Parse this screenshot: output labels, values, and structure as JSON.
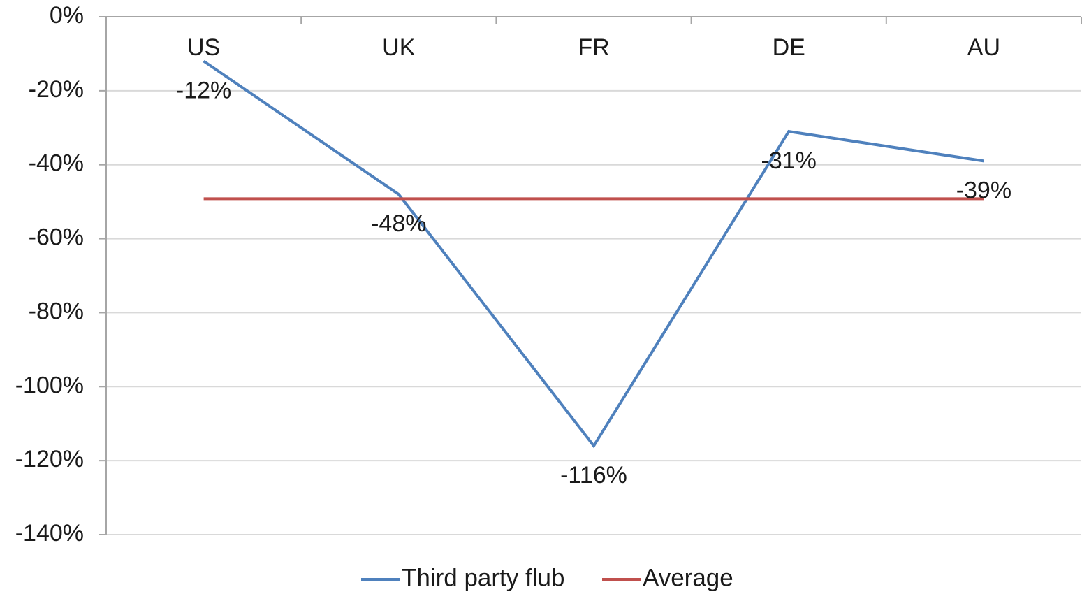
{
  "chart_data": {
    "type": "line",
    "title": "",
    "xlabel": "",
    "ylabel": "",
    "categories": [
      "US",
      "UK",
      "FR",
      "DE",
      "AU"
    ],
    "ylim": [
      -140,
      0
    ],
    "y_tick_values": [
      0,
      -20,
      -40,
      -60,
      -80,
      -100,
      -120,
      -140
    ],
    "y_tick_labels": [
      "0%",
      "-20%",
      "-40%",
      "-60%",
      "-80%",
      "-100%",
      "-120%",
      "-140%"
    ],
    "grid": true,
    "legend_position": "bottom",
    "series": [
      {
        "name": "Third party flub",
        "color": "#4f81bd",
        "values": [
          -12,
          -48,
          -116,
          -31,
          -39
        ],
        "data_labels": [
          "-12%",
          "-48%",
          "-116%",
          "-31%",
          "-39%"
        ]
      },
      {
        "name": "Average",
        "color": "#c0504d",
        "values": [
          -49.2,
          -49.2,
          -49.2,
          -49.2,
          -49.2
        ]
      }
    ]
  }
}
